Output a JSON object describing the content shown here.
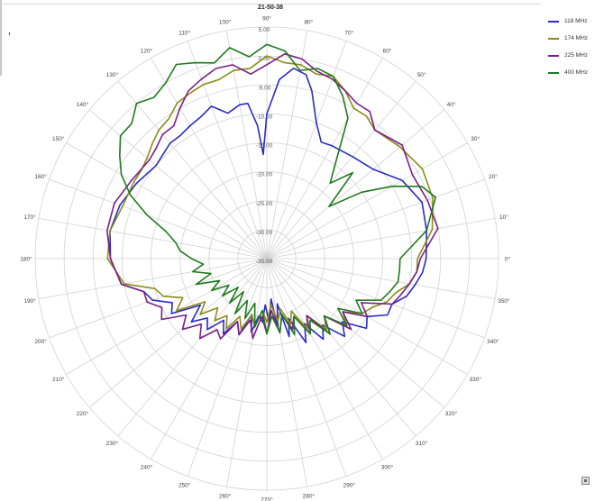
{
  "chart_data": {
    "type": "polar-line",
    "title": "21-50-38",
    "r_range": [
      -35,
      5
    ],
    "r_ticks": [
      "5.00",
      "0.00",
      "-5.00",
      "-10.00",
      "-15.00",
      "-20.00",
      "-25.00",
      "-30.00",
      "-35.00"
    ],
    "angle_ticks": [
      "0°",
      "10°",
      "20°",
      "30°",
      "40°",
      "50°",
      "60°",
      "70°",
      "80°",
      "90°",
      "100°",
      "110°",
      "120°",
      "130°",
      "140°",
      "150°",
      "160°",
      "170°",
      "180°",
      "190°",
      "200°",
      "210°",
      "220°",
      "230°",
      "240°",
      "250°",
      "260°",
      "270°",
      "280°",
      "290°",
      "300°",
      "310°",
      "320°",
      "330°",
      "340°",
      "350°"
    ],
    "grid": true,
    "legend_position": "top-right",
    "series": [
      {
        "name": "118 MHz",
        "color": "#2b2bc4",
        "points": [
          [
            0,
            -7.5
          ],
          [
            10,
            -7
          ],
          [
            20,
            -6.5
          ],
          [
            30,
            -8
          ],
          [
            40,
            -11
          ],
          [
            50,
            -12
          ],
          [
            60,
            -12.5
          ],
          [
            65,
            -12.8
          ],
          [
            70,
            -10
          ],
          [
            75,
            -5
          ],
          [
            78,
            -2.5
          ],
          [
            82,
            -1.8
          ],
          [
            86,
            -4
          ],
          [
            90,
            -10
          ],
          [
            92,
            -17
          ],
          [
            94,
            -12
          ],
          [
            97,
            -8
          ],
          [
            100,
            -8
          ],
          [
            105,
            -9
          ],
          [
            110,
            -7
          ],
          [
            115,
            -8
          ],
          [
            120,
            -8.5
          ],
          [
            125,
            -9
          ],
          [
            130,
            -9
          ],
          [
            140,
            -10
          ],
          [
            150,
            -9
          ],
          [
            160,
            -8
          ],
          [
            170,
            -7.5
          ],
          [
            180,
            -8
          ],
          [
            190,
            -9.5
          ],
          [
            195,
            -13
          ],
          [
            200,
            -14
          ],
          [
            205,
            -17
          ],
          [
            210,
            -16
          ],
          [
            215,
            -21
          ],
          [
            220,
            -18
          ],
          [
            225,
            -20.5
          ],
          [
            230,
            -19
          ],
          [
            235,
            -22
          ],
          [
            240,
            -20
          ],
          [
            245,
            -23
          ],
          [
            250,
            -21
          ],
          [
            255,
            -25
          ],
          [
            258,
            -22
          ],
          [
            262,
            -25
          ],
          [
            266,
            -24
          ],
          [
            268,
            -27
          ],
          [
            272,
            -24
          ],
          [
            276,
            -28
          ],
          [
            279,
            -23
          ],
          [
            283,
            -27
          ],
          [
            286,
            -21
          ],
          [
            290,
            -24
          ],
          [
            295,
            -19
          ],
          [
            300,
            -22
          ],
          [
            305,
            -18
          ],
          [
            310,
            -20
          ],
          [
            315,
            -16
          ],
          [
            320,
            -18
          ],
          [
            325,
            -14
          ],
          [
            330,
            -15
          ],
          [
            335,
            -12
          ],
          [
            340,
            -12
          ],
          [
            345,
            -10
          ],
          [
            350,
            -9
          ],
          [
            355,
            -8
          ],
          [
            360,
            -7.5
          ]
        ]
      },
      {
        "name": "174 MHz",
        "color": "#8c8c1a",
        "points": [
          [
            0,
            -9
          ],
          [
            10,
            -6
          ],
          [
            20,
            -4.5
          ],
          [
            30,
            -4
          ],
          [
            40,
            -5
          ],
          [
            50,
            -6
          ],
          [
            55,
            -5
          ],
          [
            60,
            -5
          ],
          [
            65,
            -3
          ],
          [
            70,
            -1.5
          ],
          [
            75,
            -2
          ],
          [
            80,
            -1
          ],
          [
            85,
            -1
          ],
          [
            90,
            0
          ],
          [
            95,
            -2
          ],
          [
            100,
            -2
          ],
          [
            105,
            -3
          ],
          [
            110,
            -3
          ],
          [
            115,
            -3.5
          ],
          [
            120,
            -4
          ],
          [
            125,
            -5.5
          ],
          [
            130,
            -6
          ],
          [
            135,
            -7
          ],
          [
            140,
            -8
          ],
          [
            145,
            -8.5
          ],
          [
            150,
            -8.5
          ],
          [
            160,
            -8.5
          ],
          [
            170,
            -7.5
          ],
          [
            180,
            -7.5
          ],
          [
            190,
            -10
          ],
          [
            195,
            -15
          ],
          [
            200,
            -16
          ],
          [
            205,
            -19
          ],
          [
            210,
            -17
          ],
          [
            215,
            -22
          ],
          [
            220,
            -20
          ],
          [
            225,
            -23
          ],
          [
            230,
            -21
          ],
          [
            235,
            -23
          ],
          [
            240,
            -21
          ],
          [
            245,
            -24
          ],
          [
            250,
            -22
          ],
          [
            255,
            -25
          ],
          [
            260,
            -23
          ],
          [
            265,
            -26
          ],
          [
            270,
            -24
          ],
          [
            275,
            -27
          ],
          [
            280,
            -24
          ],
          [
            285,
            -26
          ],
          [
            290,
            -23
          ],
          [
            295,
            -25
          ],
          [
            300,
            -21
          ],
          [
            305,
            -23
          ],
          [
            310,
            -19
          ],
          [
            315,
            -21
          ],
          [
            320,
            -17
          ],
          [
            325,
            -19
          ],
          [
            330,
            -16
          ],
          [
            335,
            -15
          ],
          [
            340,
            -13
          ],
          [
            345,
            -12
          ],
          [
            350,
            -10
          ],
          [
            355,
            -9
          ],
          [
            360,
            -9
          ]
        ]
      },
      {
        "name": "225 MHz",
        "color": "#7a1f8a",
        "points": [
          [
            0,
            -8.5
          ],
          [
            10,
            -5
          ],
          [
            20,
            -5.5
          ],
          [
            30,
            -6
          ],
          [
            40,
            -4.5
          ],
          [
            50,
            -6
          ],
          [
            55,
            -4
          ],
          [
            60,
            -4
          ],
          [
            65,
            -3
          ],
          [
            70,
            -2
          ],
          [
            75,
            -1.5
          ],
          [
            80,
            0
          ],
          [
            85,
            0.5
          ],
          [
            90,
            -1.5
          ],
          [
            95,
            -3
          ],
          [
            100,
            -1
          ],
          [
            105,
            -1
          ],
          [
            110,
            -2
          ],
          [
            115,
            -3
          ],
          [
            120,
            -5
          ],
          [
            125,
            -7
          ],
          [
            130,
            -7
          ],
          [
            135,
            -8
          ],
          [
            140,
            -8.5
          ],
          [
            150,
            -8
          ],
          [
            160,
            -7
          ],
          [
            170,
            -7
          ],
          [
            180,
            -8
          ],
          [
            190,
            -9.5
          ],
          [
            195,
            -13
          ],
          [
            200,
            -13
          ],
          [
            205,
            -15
          ],
          [
            210,
            -14
          ],
          [
            215,
            -18
          ],
          [
            220,
            -16
          ],
          [
            225,
            -19
          ],
          [
            230,
            -17
          ],
          [
            235,
            -20
          ],
          [
            240,
            -19
          ],
          [
            245,
            -23
          ],
          [
            250,
            -21
          ],
          [
            255,
            -24
          ],
          [
            260,
            -21
          ],
          [
            265,
            -25
          ],
          [
            270,
            -22
          ],
          [
            275,
            -26
          ],
          [
            280,
            -22
          ],
          [
            285,
            -25
          ],
          [
            290,
            -22
          ],
          [
            295,
            -24
          ],
          [
            300,
            -20
          ],
          [
            305,
            -23
          ],
          [
            310,
            -18
          ],
          [
            315,
            -21
          ],
          [
            320,
            -16
          ],
          [
            325,
            -19
          ],
          [
            330,
            -15
          ],
          [
            335,
            -17
          ],
          [
            340,
            -12
          ],
          [
            345,
            -11
          ],
          [
            350,
            -10
          ],
          [
            355,
            -9
          ],
          [
            360,
            -8.5
          ]
        ]
      },
      {
        "name": "400 MHz",
        "color": "#1e7a1e",
        "points": [
          [
            0,
            -12
          ],
          [
            10,
            -7
          ],
          [
            20,
            -4
          ],
          [
            25,
            -5.5
          ],
          [
            30,
            -10
          ],
          [
            35,
            -15
          ],
          [
            40,
            -21
          ],
          [
            45,
            -14
          ],
          [
            50,
            -18
          ],
          [
            55,
            -14
          ],
          [
            60,
            -7
          ],
          [
            65,
            -4
          ],
          [
            70,
            -1.5
          ],
          [
            75,
            -1
          ],
          [
            80,
            -2
          ],
          [
            85,
            1
          ],
          [
            90,
            2
          ],
          [
            95,
            0
          ],
          [
            100,
            2
          ],
          [
            105,
            0
          ],
          [
            110,
            1
          ],
          [
            115,
            2
          ],
          [
            120,
            0
          ],
          [
            125,
            -1
          ],
          [
            130,
            0
          ],
          [
            135,
            -2
          ],
          [
            140,
            -2
          ],
          [
            145,
            -4
          ],
          [
            150,
            -6
          ],
          [
            155,
            -9
          ],
          [
            160,
            -13
          ],
          [
            165,
            -17
          ],
          [
            170,
            -19
          ],
          [
            175,
            -20
          ],
          [
            180,
            -22
          ],
          [
            185,
            -24
          ],
          [
            190,
            -22
          ],
          [
            195,
            -25
          ],
          [
            200,
            -22
          ],
          [
            205,
            -26
          ],
          [
            210,
            -24
          ],
          [
            215,
            -27
          ],
          [
            220,
            -25
          ],
          [
            225,
            -28
          ],
          [
            230,
            -25
          ],
          [
            235,
            -28
          ],
          [
            240,
            -24
          ],
          [
            245,
            -27
          ],
          [
            250,
            -24
          ],
          [
            255,
            -27
          ],
          [
            260,
            -23
          ],
          [
            265,
            -26
          ],
          [
            270,
            -22
          ],
          [
            275,
            -25
          ],
          [
            280,
            -22
          ],
          [
            285,
            -25
          ],
          [
            290,
            -21
          ],
          [
            295,
            -24
          ],
          [
            300,
            -20
          ],
          [
            305,
            -22
          ],
          [
            310,
            -18
          ],
          [
            315,
            -21
          ],
          [
            320,
            -17
          ],
          [
            325,
            -20
          ],
          [
            330,
            -16
          ],
          [
            335,
            -18
          ],
          [
            340,
            -14
          ],
          [
            345,
            -13
          ],
          [
            350,
            -12
          ],
          [
            355,
            -12
          ],
          [
            360,
            -12
          ]
        ]
      }
    ]
  }
}
